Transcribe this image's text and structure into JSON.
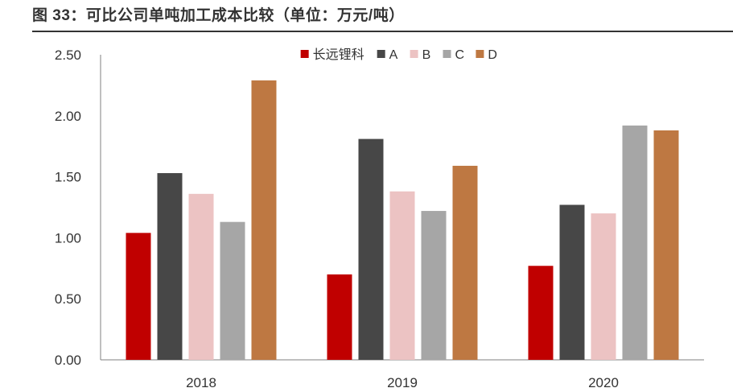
{
  "figure_title": "图 33：可比公司单吨加工成本比较（单位：万元/吨）",
  "chart_data": {
    "type": "bar",
    "title": "可比公司单吨加工成本比较（单位：万元/吨）",
    "categories": [
      "2018",
      "2019",
      "2020"
    ],
    "series": [
      {
        "name": "长远锂科",
        "color": "#C00000",
        "values": [
          1.04,
          0.7,
          0.77
        ]
      },
      {
        "name": "A",
        "color": "#474747",
        "values": [
          1.53,
          1.81,
          1.27
        ]
      },
      {
        "name": "B",
        "color": "#ECC3C3",
        "values": [
          1.36,
          1.38,
          1.2
        ]
      },
      {
        "name": "C",
        "color": "#A6A6A6",
        "values": [
          1.13,
          1.22,
          1.92
        ]
      },
      {
        "name": "D",
        "color": "#BE7842",
        "values": [
          2.29,
          1.59,
          1.88
        ]
      }
    ],
    "y_ticks": [
      "0.00",
      "0.50",
      "1.00",
      "1.50",
      "2.00",
      "2.50"
    ],
    "ylim": [
      0,
      2.5
    ],
    "xlabel": "",
    "ylabel": "",
    "legend_position": "top-center",
    "grid": false
  }
}
